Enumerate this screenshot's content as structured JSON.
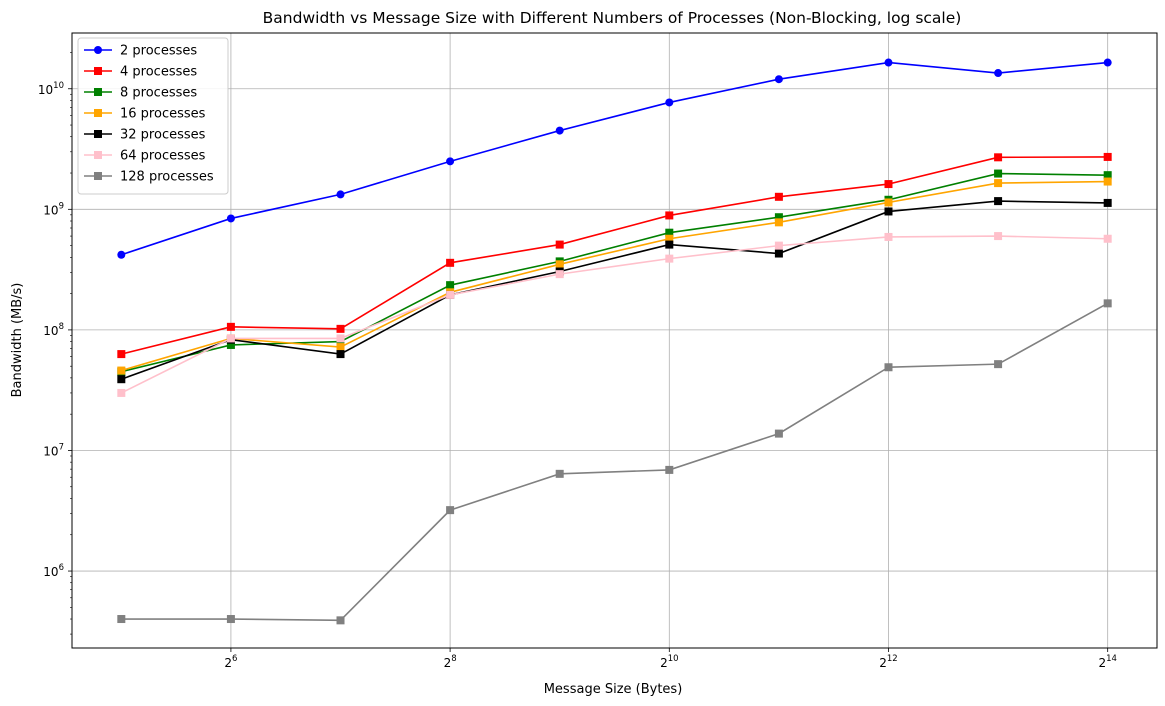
{
  "chart_data": {
    "type": "line",
    "title": "Bandwidth vs Message Size with Different Numbers of Processes (Non-Blocking, log scale)",
    "xlabel": "Message Size (Bytes)",
    "ylabel": "Bandwidth (MB/s)",
    "x_scale": "log2",
    "y_scale": "log10",
    "grid": true,
    "legend_position": "top-left",
    "x": [
      32,
      64,
      128,
      256,
      512,
      1024,
      2048,
      4096,
      8192,
      16384
    ],
    "x_ticks": [
      {
        "value": 64,
        "base": "2",
        "exp": "6"
      },
      {
        "value": 256,
        "base": "2",
        "exp": "8"
      },
      {
        "value": 1024,
        "base": "2",
        "exp": "10"
      },
      {
        "value": 4096,
        "base": "2",
        "exp": "12"
      },
      {
        "value": 16384,
        "base": "2",
        "exp": "14"
      }
    ],
    "y_ticks": [
      {
        "value": 1000000,
        "base": "10",
        "exp": "6"
      },
      {
        "value": 10000000,
        "base": "10",
        "exp": "7"
      },
      {
        "value": 100000000,
        "base": "10",
        "exp": "8"
      },
      {
        "value": 1000000000,
        "base": "10",
        "exp": "9"
      },
      {
        "value": 10000000000,
        "base": "10",
        "exp": "10"
      }
    ],
    "series": [
      {
        "name": "2 processes",
        "color": "#0000ff",
        "marker": "circle",
        "values": [
          420000000.0,
          840000000.0,
          1330000000.0,
          2500000000.0,
          4500000000.0,
          7700000000.0,
          12000000000.0,
          16500000000.0,
          13500000000.0,
          16500000000.0
        ]
      },
      {
        "name": "4 processes",
        "color": "#ff0000",
        "marker": "square",
        "values": [
          63000000.0,
          106000000.0,
          102000000.0,
          360000000.0,
          510000000.0,
          890000000.0,
          1270000000.0,
          1620000000.0,
          2700000000.0,
          2720000000.0
        ]
      },
      {
        "name": "8 processes",
        "color": "#008000",
        "marker": "square",
        "values": [
          45000000.0,
          75000000.0,
          80000000.0,
          235000000.0,
          370000000.0,
          640000000.0,
          860000000.0,
          1200000000.0,
          1980000000.0,
          1920000000.0
        ]
      },
      {
        "name": "16 processes",
        "color": "#ffa500",
        "marker": "square",
        "values": [
          46000000.0,
          85000000.0,
          72000000.0,
          205000000.0,
          350000000.0,
          570000000.0,
          780000000.0,
          1140000000.0,
          1650000000.0,
          1700000000.0
        ]
      },
      {
        "name": "32 processes",
        "color": "#000000",
        "marker": "square",
        "values": [
          39000000.0,
          83000000.0,
          63000000.0,
          195000000.0,
          305000000.0,
          510000000.0,
          430000000.0,
          960000000.0,
          1170000000.0,
          1130000000.0
        ]
      },
      {
        "name": "64 processes",
        "color": "#ffc0cb",
        "marker": "square",
        "values": [
          30000000.0,
          85000000.0,
          85000000.0,
          195000000.0,
          290000000.0,
          390000000.0,
          500000000.0,
          590000000.0,
          600000000.0,
          570000000.0
        ]
      },
      {
        "name": "128 processes",
        "color": "#808080",
        "marker": "square",
        "values": [
          400000.0,
          400000.0,
          390000.0,
          3200000.0,
          6400000.0,
          6900000.0,
          13800000.0,
          49000000.0,
          52000000.0,
          166000000.0
        ]
      }
    ]
  }
}
